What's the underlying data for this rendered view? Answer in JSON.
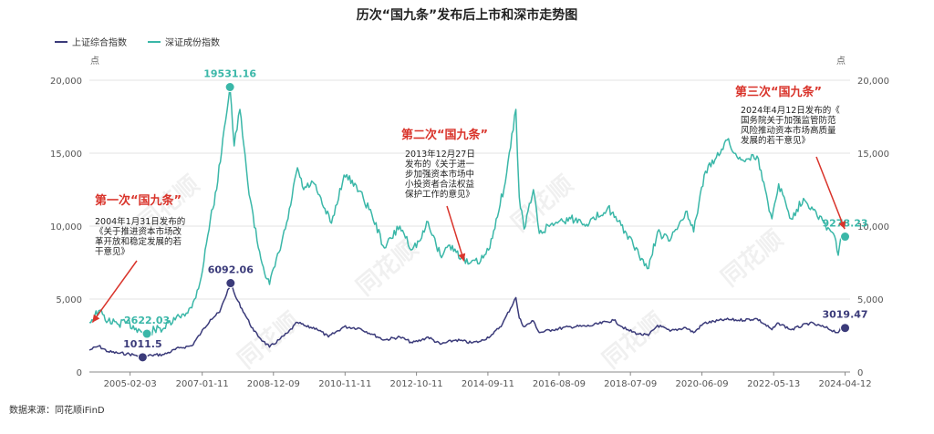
{
  "chart_data": {
    "type": "line",
    "title": "历次“国九条”发布后上市和深市走势图",
    "legend": [
      {
        "name": "上证综合指数",
        "color": "#3b3b7a"
      },
      {
        "name": "深证成份指数",
        "color": "#3ab7a8"
      }
    ],
    "legend_position": "top-left",
    "y_left": {
      "unit": "点",
      "min": 0,
      "max": 20000,
      "ticks": [
        "0",
        "5,000",
        "10,000",
        "15,000",
        "20,000"
      ]
    },
    "y_right": {
      "unit": "点",
      "min": 0,
      "max": 20000,
      "ticks": [
        "0",
        "5,000",
        "10,000",
        "15,000",
        "20,000"
      ]
    },
    "grid": true,
    "x_range": [
      "2004-01-01",
      "2024-05-31"
    ],
    "x_ticks": [
      "2005-02-03",
      "2007-01-11",
      "2008-12-09",
      "2010-11-11",
      "2012-10-11",
      "2014-09-11",
      "2016-08-09",
      "2018-07-09",
      "2020-06-09",
      "2022-05-13",
      "2024-04-12"
    ],
    "series": [
      {
        "name": "上证综合指数",
        "color": "#3b3b7a",
        "points": [
          [
            "2004-01-01",
            1500
          ],
          [
            "2004-04-01",
            1780
          ],
          [
            "2004-07-01",
            1400
          ],
          [
            "2004-10-01",
            1300
          ],
          [
            "2005-01-01",
            1250
          ],
          [
            "2005-04-01",
            1150
          ],
          [
            "2005-06-06",
            1011.5
          ],
          [
            "2005-09-01",
            1150
          ],
          [
            "2006-01-01",
            1200
          ],
          [
            "2006-06-01",
            1650
          ],
          [
            "2006-10-01",
            1800
          ],
          [
            "2007-01-01",
            2700
          ],
          [
            "2007-04-01",
            3600
          ],
          [
            "2007-07-01",
            4100
          ],
          [
            "2007-10-16",
            6092.06
          ],
          [
            "2007-12-01",
            5200
          ],
          [
            "2008-03-01",
            4000
          ],
          [
            "2008-06-01",
            2800
          ],
          [
            "2008-09-01",
            2100
          ],
          [
            "2008-11-01",
            1700
          ],
          [
            "2009-02-01",
            2200
          ],
          [
            "2009-05-01",
            2700
          ],
          [
            "2009-08-01",
            3400
          ],
          [
            "2009-11-01",
            3100
          ],
          [
            "2010-02-01",
            3000
          ],
          [
            "2010-06-01",
            2400
          ],
          [
            "2010-11-01",
            3100
          ],
          [
            "2011-04-01",
            3000
          ],
          [
            "2011-08-01",
            2600
          ],
          [
            "2011-12-01",
            2200
          ],
          [
            "2012-05-01",
            2400
          ],
          [
            "2012-09-01",
            2000
          ],
          [
            "2012-12-01",
            2200
          ],
          [
            "2013-02-01",
            2400
          ],
          [
            "2013-06-01",
            1900
          ],
          [
            "2013-11-01",
            2200
          ],
          [
            "2014-04-01",
            2000
          ],
          [
            "2014-07-01",
            2100
          ],
          [
            "2014-11-01",
            2600
          ],
          [
            "2015-02-01",
            3300
          ],
          [
            "2015-06-12",
            5100
          ],
          [
            "2015-07-15",
            3700
          ],
          [
            "2015-09-01",
            3100
          ],
          [
            "2015-12-01",
            3500
          ],
          [
            "2016-01-28",
            2700
          ],
          [
            "2016-06-01",
            2900
          ],
          [
            "2016-12-01",
            3100
          ],
          [
            "2017-06-01",
            3150
          ],
          [
            "2018-01-26",
            3550
          ],
          [
            "2018-06-01",
            2900
          ],
          [
            "2018-10-01",
            2600
          ],
          [
            "2019-01-01",
            2500
          ],
          [
            "2019-04-01",
            3200
          ],
          [
            "2019-08-01",
            2800
          ],
          [
            "2020-01-01",
            3050
          ],
          [
            "2020-03-20",
            2700
          ],
          [
            "2020-07-01",
            3350
          ],
          [
            "2021-02-01",
            3600
          ],
          [
            "2021-06-01",
            3550
          ],
          [
            "2021-12-01",
            3650
          ],
          [
            "2022-04-26",
            2900
          ],
          [
            "2022-07-01",
            3350
          ],
          [
            "2022-10-31",
            2900
          ],
          [
            "2023-05-01",
            3350
          ],
          [
            "2023-10-01",
            3050
          ],
          [
            "2024-02-05",
            2700
          ],
          [
            "2024-03-01",
            3050
          ],
          [
            "2024-04-12",
            3019.47
          ]
        ]
      },
      {
        "name": "深证成份指数",
        "color": "#3ab7a8",
        "points": [
          [
            "2004-01-01",
            3400
          ],
          [
            "2004-04-01",
            4200
          ],
          [
            "2004-07-01",
            3500
          ],
          [
            "2004-10-01",
            3300
          ],
          [
            "2005-01-01",
            3400
          ],
          [
            "2005-04-01",
            3000
          ],
          [
            "2005-07-18",
            2622.03
          ],
          [
            "2005-10-01",
            2900
          ],
          [
            "2006-01-01",
            3000
          ],
          [
            "2006-06-01",
            3800
          ],
          [
            "2006-10-01",
            4400
          ],
          [
            "2007-01-01",
            6500
          ],
          [
            "2007-04-01",
            10500
          ],
          [
            "2007-06-01",
            12500
          ],
          [
            "2007-08-01",
            16000
          ],
          [
            "2007-10-10",
            19531.16
          ],
          [
            "2007-11-20",
            15500
          ],
          [
            "2008-01-15",
            18000
          ],
          [
            "2008-04-01",
            13000
          ],
          [
            "2008-07-01",
            9000
          ],
          [
            "2008-09-01",
            7200
          ],
          [
            "2008-11-01",
            6000
          ],
          [
            "2009-02-01",
            8200
          ],
          [
            "2009-05-01",
            10500
          ],
          [
            "2009-08-01",
            14000
          ],
          [
            "2009-10-01",
            12500
          ],
          [
            "2010-01-01",
            13000
          ],
          [
            "2010-04-01",
            11500
          ],
          [
            "2010-07-01",
            10200
          ],
          [
            "2010-11-01",
            13500
          ],
          [
            "2011-03-01",
            12800
          ],
          [
            "2011-08-01",
            10800
          ],
          [
            "2011-12-01",
            8500
          ],
          [
            "2012-05-01",
            10000
          ],
          [
            "2012-09-01",
            8400
          ],
          [
            "2012-12-01",
            9200
          ],
          [
            "2013-02-01",
            10300
          ],
          [
            "2013-06-01",
            8000
          ],
          [
            "2013-09-01",
            8700
          ],
          [
            "2013-12-27",
            7900
          ],
          [
            "2014-03-01",
            7400
          ],
          [
            "2014-07-01",
            7600
          ],
          [
            "2014-10-01",
            8500
          ],
          [
            "2014-12-01",
            10500
          ],
          [
            "2015-03-01",
            13000
          ],
          [
            "2015-06-12",
            18000
          ],
          [
            "2015-07-15",
            12000
          ],
          [
            "2015-09-01",
            9800
          ],
          [
            "2015-12-01",
            12500
          ],
          [
            "2016-01-28",
            9500
          ],
          [
            "2016-06-01",
            10200
          ],
          [
            "2016-12-01",
            10500
          ],
          [
            "2017-06-01",
            10200
          ],
          [
            "2017-12-01",
            11300
          ],
          [
            "2018-02-01",
            10600
          ],
          [
            "2018-06-01",
            9500
          ],
          [
            "2018-10-01",
            8000
          ],
          [
            "2019-01-03",
            7100
          ],
          [
            "2019-04-01",
            9600
          ],
          [
            "2019-08-01",
            9000
          ],
          [
            "2020-01-01",
            11000
          ],
          [
            "2020-03-20",
            9600
          ],
          [
            "2020-07-01",
            13500
          ],
          [
            "2021-02-10",
            15900
          ],
          [
            "2021-06-01",
            14600
          ],
          [
            "2021-12-01",
            14800
          ],
          [
            "2022-04-26",
            10500
          ],
          [
            "2022-07-01",
            12900
          ],
          [
            "2022-10-31",
            10500
          ],
          [
            "2023-03-01",
            11900
          ],
          [
            "2023-07-01",
            11000
          ],
          [
            "2023-10-01",
            10100
          ],
          [
            "2024-01-01",
            9300
          ],
          [
            "2024-02-05",
            8000
          ],
          [
            "2024-03-01",
            9200
          ],
          [
            "2024-04-12",
            9278.23
          ]
        ]
      }
    ],
    "markers": [
      {
        "series": 0,
        "date": "2005-06-06",
        "value": 1011.5,
        "label": "1011.5"
      },
      {
        "series": 1,
        "date": "2005-07-18",
        "value": 2622.03,
        "label": "2622.03"
      },
      {
        "series": 0,
        "date": "2007-10-16",
        "value": 6092.06,
        "label": "6092.06"
      },
      {
        "series": 1,
        "date": "2007-10-10",
        "value": 19531.16,
        "label": "19531.16"
      },
      {
        "series": 0,
        "date": "2024-04-12",
        "value": 3019.47,
        "label": "3019.47"
      },
      {
        "series": 1,
        "date": "2024-04-12",
        "value": 9278.23,
        "label": "9278.23"
      }
    ],
    "annotations": [
      {
        "title": "第一次“国九条”",
        "lines": [
          "2004年1月31日发布的",
          "《关于推进资本市场改",
          "革开放和稳定发展的若",
          "干意见》"
        ],
        "arrow_to_date": "2004-01-31",
        "arrow_to_value": 3400
      },
      {
        "title": "第二次“国九条”",
        "lines": [
          "2013年12月27日",
          "发布的《关于进一",
          "步加强资本市场中",
          "小投资者合法权益",
          "保护工作的意见》"
        ],
        "arrow_to_date": "2014-01-20",
        "arrow_to_value": 7600
      },
      {
        "title": "第三次“国九条”",
        "lines": [
          "2024年4月12日发布的《",
          "国务院关于加强监管防范",
          "风险推动资本市场高质量",
          "发展的若干意见》"
        ],
        "arrow_to_date": "2024-04-08",
        "arrow_to_value": 9800
      }
    ],
    "watermark": "同花顺",
    "annotation_color": "#d9342b"
  },
  "footer": {
    "source": "数据来源：同花顺iFinD"
  }
}
